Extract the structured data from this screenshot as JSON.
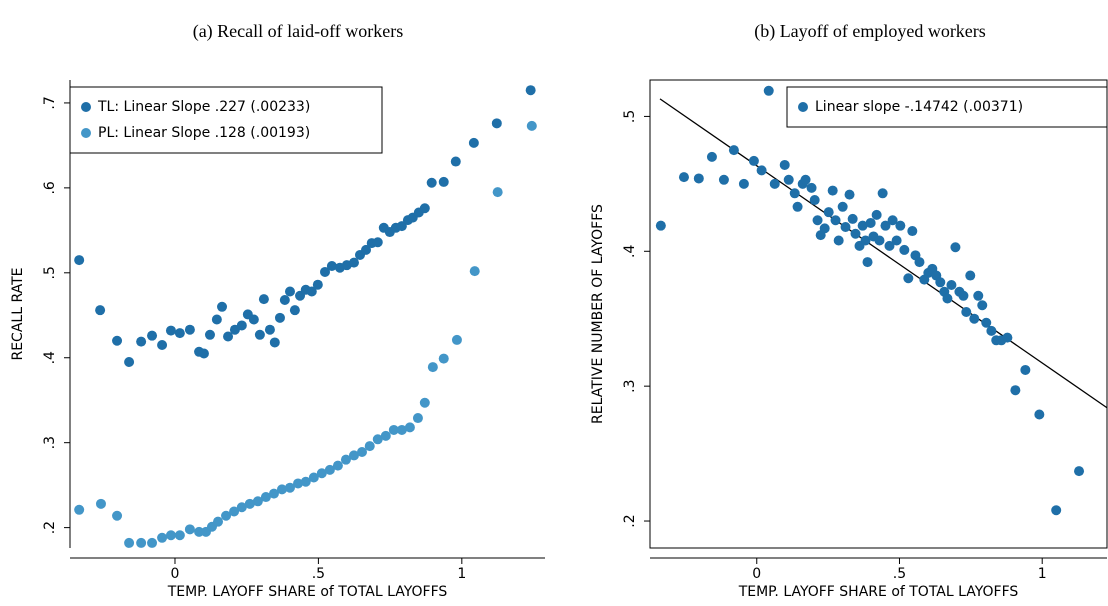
{
  "chart_data": [
    {
      "type": "scatter",
      "title": "(a) Recall of laid-off workers",
      "xlabel": "TEMP. LAYOFF SHARE of TOTAL LAYOFFS",
      "ylabel": "RECALL RATE",
      "xlim": [
        -0.366,
        1.29
      ],
      "ylim": [
        0.176,
        0.727
      ],
      "xticks": [
        0,
        {
          "value": 0.5,
          "label": ".5"
        },
        1
      ],
      "yticks": [
        {
          "value": 0.2,
          "label": ".2"
        },
        {
          "value": 0.3,
          "label": ".3"
        },
        {
          "value": 0.4,
          "label": ".4"
        },
        {
          "value": 0.5,
          "label": ".5"
        },
        {
          "value": 0.6,
          "label": ".6"
        },
        {
          "value": 0.7,
          "label": ".7"
        }
      ],
      "legend": "upper left",
      "series": [
        {
          "name": "TL: Linear Slope .227 (.00233)",
          "color": "#1f6fa8",
          "x": [
            -0.334,
            -0.261,
            -0.202,
            -0.16,
            -0.118,
            -0.08,
            -0.045,
            -0.014,
            0.017,
            0.052,
            0.084,
            0.101,
            0.122,
            0.146,
            0.164,
            0.185,
            0.209,
            0.233,
            0.254,
            0.275,
            0.296,
            0.31,
            0.331,
            0.348,
            0.366,
            0.383,
            0.401,
            0.418,
            0.436,
            0.456,
            0.477,
            0.498,
            0.523,
            0.547,
            0.575,
            0.599,
            0.624,
            0.645,
            0.666,
            0.686,
            0.707,
            0.728,
            0.749,
            0.77,
            0.791,
            0.812,
            0.829,
            0.85,
            0.871,
            0.895,
            0.937,
            0.979,
            1.042,
            1.122,
            1.24
          ],
          "values": [
            0.515,
            0.456,
            0.42,
            0.395,
            0.419,
            0.426,
            0.415,
            0.432,
            0.429,
            0.433,
            0.407,
            0.405,
            0.427,
            0.445,
            0.46,
            0.425,
            0.433,
            0.438,
            0.451,
            0.445,
            0.427,
            0.469,
            0.433,
            0.418,
            0.447,
            0.468,
            0.478,
            0.456,
            0.473,
            0.48,
            0.478,
            0.486,
            0.501,
            0.508,
            0.506,
            0.509,
            0.512,
            0.521,
            0.527,
            0.535,
            0.536,
            0.553,
            0.548,
            0.553,
            0.555,
            0.562,
            0.565,
            0.571,
            0.576,
            0.606,
            0.607,
            0.631,
            0.653,
            0.676,
            0.715
          ]
        },
        {
          "name": "PL: Linear Slope .128 (.00193)",
          "color": "#4396c8",
          "x": [
            -0.334,
            -0.258,
            -0.202,
            -0.16,
            -0.118,
            -0.08,
            -0.045,
            -0.014,
            0.017,
            0.052,
            0.084,
            0.108,
            0.129,
            0.15,
            0.178,
            0.206,
            0.233,
            0.261,
            0.289,
            0.317,
            0.345,
            0.373,
            0.401,
            0.429,
            0.456,
            0.484,
            0.512,
            0.54,
            0.568,
            0.596,
            0.624,
            0.652,
            0.679,
            0.707,
            0.735,
            0.763,
            0.791,
            0.819,
            0.847,
            0.871,
            0.899,
            0.937,
            0.983,
            1.045,
            1.125,
            1.244
          ],
          "values": [
            0.221,
            0.228,
            0.214,
            0.182,
            0.182,
            0.182,
            0.188,
            0.191,
            0.191,
            0.198,
            0.195,
            0.195,
            0.201,
            0.207,
            0.214,
            0.219,
            0.224,
            0.228,
            0.231,
            0.236,
            0.24,
            0.245,
            0.247,
            0.252,
            0.254,
            0.259,
            0.264,
            0.268,
            0.273,
            0.28,
            0.285,
            0.289,
            0.296,
            0.304,
            0.308,
            0.315,
            0.315,
            0.318,
            0.329,
            0.347,
            0.389,
            0.399,
            0.421,
            0.502,
            0.595,
            0.673
          ]
        }
      ]
    },
    {
      "type": "scatter",
      "title": "(b) Layoff of employed workers",
      "xlabel": "TEMP. LAYOFF SHARE of TOTAL LAYOFFS",
      "ylabel": "RELATIVE NUMBER OF LAYOFFS",
      "xlim": [
        -0.374,
        1.227
      ],
      "ylim": [
        0.18,
        0.527
      ],
      "xticks": [
        0,
        {
          "value": 0.5,
          "label": ".5"
        },
        1
      ],
      "yticks": [
        {
          "value": 0.2,
          "label": ".2"
        },
        {
          "value": 0.3,
          "label": ".3"
        },
        {
          "value": 0.4,
          "label": ".4"
        },
        {
          "value": 0.5,
          "label": ".5"
        }
      ],
      "legend": "upper right",
      "fit_line": {
        "x": [
          -0.339,
          1.227
        ],
        "y": [
          0.513,
          0.284
        ],
        "color": "#000000"
      },
      "series": [
        {
          "name": "Linear slope  -.14742 (.00371)",
          "color": "#1f6fa8",
          "x": [
            -0.336,
            -0.255,
            -0.203,
            -0.157,
            -0.115,
            -0.08,
            -0.045,
            -0.01,
            0.017,
            0.042,
            0.063,
            0.098,
            0.112,
            0.133,
            0.143,
            0.161,
            0.171,
            0.192,
            0.203,
            0.213,
            0.224,
            0.238,
            0.252,
            0.266,
            0.276,
            0.287,
            0.301,
            0.311,
            0.325,
            0.336,
            0.346,
            0.36,
            0.371,
            0.381,
            0.388,
            0.399,
            0.409,
            0.42,
            0.43,
            0.441,
            0.451,
            0.465,
            0.476,
            0.49,
            0.503,
            0.517,
            0.531,
            0.545,
            0.556,
            0.57,
            0.587,
            0.601,
            0.615,
            0.629,
            0.643,
            0.657,
            0.668,
            0.682,
            0.696,
            0.71,
            0.724,
            0.734,
            0.748,
            0.762,
            0.776,
            0.79,
            0.804,
            0.822,
            0.839,
            0.857,
            0.878,
            0.906,
            0.941,
            0.99,
            1.049,
            1.129
          ],
          "values": [
            0.419,
            0.455,
            0.454,
            0.47,
            0.453,
            0.475,
            0.45,
            0.467,
            0.46,
            0.519,
            0.45,
            0.464,
            0.453,
            0.443,
            0.433,
            0.45,
            0.453,
            0.447,
            0.438,
            0.423,
            0.412,
            0.417,
            0.429,
            0.445,
            0.423,
            0.408,
            0.433,
            0.418,
            0.442,
            0.424,
            0.413,
            0.404,
            0.419,
            0.408,
            0.392,
            0.421,
            0.411,
            0.427,
            0.408,
            0.443,
            0.419,
            0.404,
            0.423,
            0.408,
            0.419,
            0.401,
            0.38,
            0.415,
            0.397,
            0.392,
            0.379,
            0.384,
            0.387,
            0.382,
            0.377,
            0.37,
            0.365,
            0.375,
            0.403,
            0.37,
            0.367,
            0.355,
            0.382,
            0.35,
            0.367,
            0.36,
            0.347,
            0.341,
            0.334,
            0.334,
            0.336,
            0.297,
            0.312,
            0.279,
            0.208,
            0.237
          ]
        }
      ]
    }
  ]
}
